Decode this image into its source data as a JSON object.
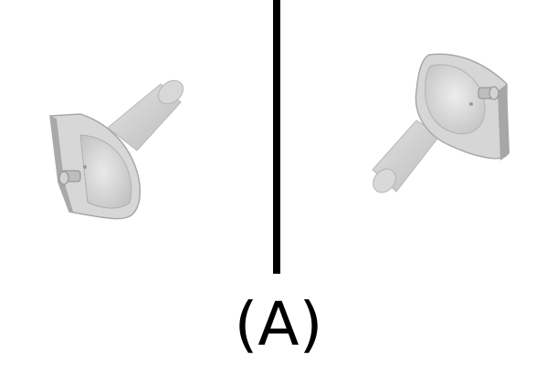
{
  "caption": "(A)",
  "colors": {
    "background": "#ffffff",
    "divider": "#000000",
    "sink_light": "#dcdcdc",
    "sink_mid": "#cfcfcf",
    "sink_shadow": "#a9a9a9",
    "sink_dark": "#8f8f8f"
  },
  "views": [
    {
      "name": "left-view"
    },
    {
      "name": "right-view"
    }
  ]
}
